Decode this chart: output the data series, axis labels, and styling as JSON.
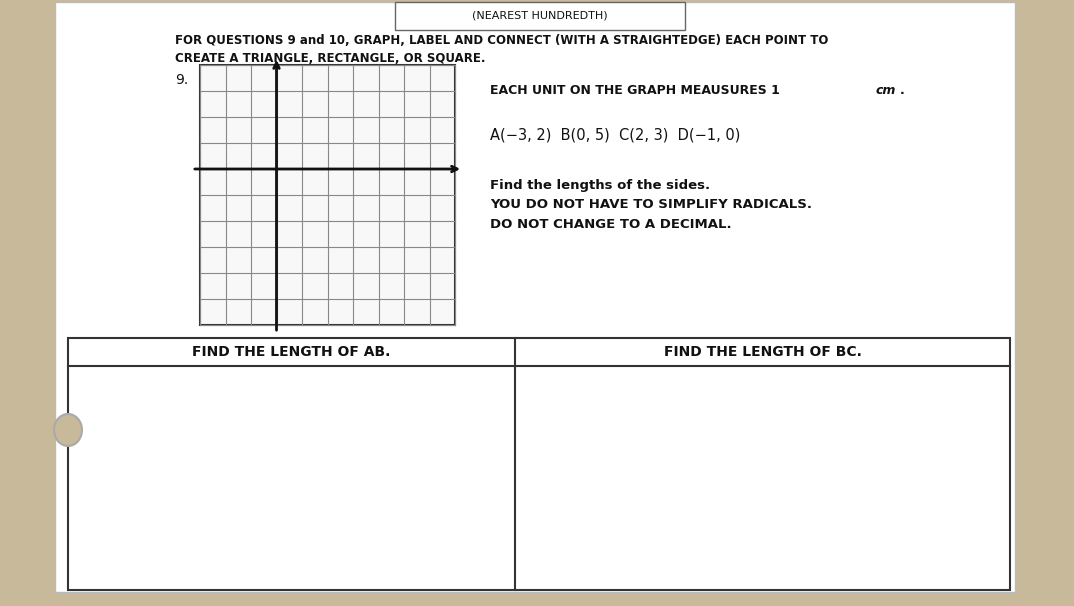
{
  "title_top": "(NEAREST HUNDREDTH)",
  "header_line1": "FOR QUESTIONS 9 and 10, GRAPH, LABEL AND CONNECT (WITH A STRAIGHTEDGE) EACH POINT TO",
  "header_line2": "CREATE A TRIANGLE, RECTANGLE, OR SQUARE.",
  "question_number": "9.",
  "graph_info_normal": "EACH UNIT ON THE GRAPH MEAUSURES 1 ",
  "graph_info_italic": "cm",
  "graph_info_bold": ".",
  "points_label": "A(−3, 2)   B(0, 5)   C(2, 3)   D(−1, 0)",
  "find_lengths": "Find the lengths of the sides.",
  "instruction1": "YOU DO NOT HAVE TO SIMPLIFY RADICALS.",
  "instruction2": "DO NOT CHANGE TO A DECIMAL.",
  "box1_label": "FIND THE LENGTH OF AB.",
  "box2_label": "FIND THE LENGTH OF BC.",
  "bg_color": "#c8b99a",
  "paper_color": "#f5f5f5",
  "paper_color2": "#ffffff",
  "grid_color": "#888888",
  "grid_bg": "#e8e8e8",
  "axis_color": "#111111",
  "text_color": "#111111",
  "box_color": "#e0e0e0"
}
